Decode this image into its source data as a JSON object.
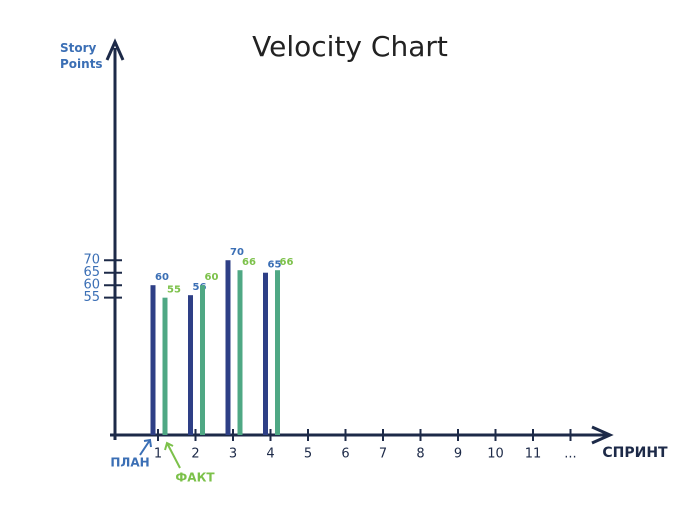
{
  "chart_data": {
    "type": "bar",
    "title": "Velocity Chart",
    "y_label": "Story Points",
    "x_label": "СПРИНТ",
    "categories": [
      "1",
      "2",
      "3",
      "4",
      "5",
      "6",
      "7",
      "8",
      "9",
      "10",
      "11",
      "..."
    ],
    "series": [
      {
        "name": "ПЛАН",
        "color": "#2e3f86",
        "label_color": "#3b6fb5",
        "values": [
          60,
          56,
          70,
          65,
          null,
          null,
          null,
          null,
          null,
          null,
          null,
          null
        ]
      },
      {
        "name": "ФАКТ",
        "color": "#4fa884",
        "label_color": "#7cc14a",
        "values": [
          55,
          60,
          66,
          66,
          null,
          null,
          null,
          null,
          null,
          null,
          null,
          null
        ]
      }
    ],
    "ylim": [
      0,
      155
    ],
    "yticks": [
      55,
      60,
      65,
      70
    ]
  }
}
